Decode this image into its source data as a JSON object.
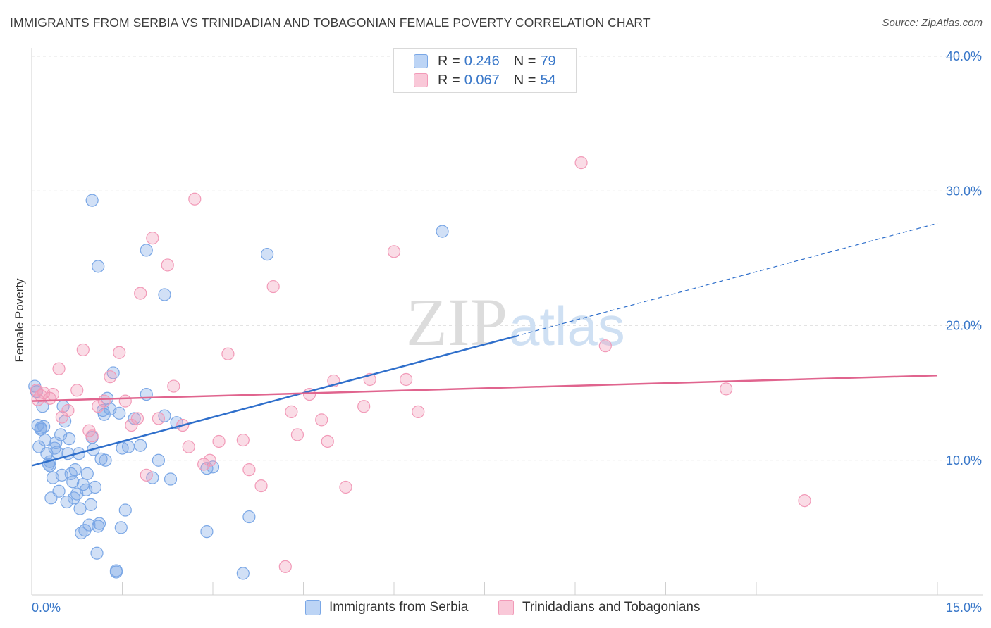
{
  "chart_data": {
    "type": "scatter",
    "title": "IMMIGRANTS FROM SERBIA VS TRINIDADIAN AND TOBAGONIAN FEMALE POVERTY CORRELATION CHART",
    "source": "Source: ZipAtlas.com",
    "xlabel": "",
    "ylabel": "Female Poverty",
    "xlim": [
      0,
      15
    ],
    "ylim": [
      0,
      40
    ],
    "x_tick_labels": [
      "0.0%",
      "15.0%"
    ],
    "y_ticks": [
      10,
      20,
      30,
      40
    ],
    "y_tick_labels": [
      "10.0%",
      "20.0%",
      "30.0%",
      "40.0%"
    ],
    "grid": true,
    "watermark": "ZIPatlas",
    "legend_stats": [
      {
        "r_label": "R = ",
        "r_value": "0.246",
        "n_label": "N = ",
        "n_value": "79"
      },
      {
        "r_label": "R = ",
        "r_value": "0.067",
        "n_label": "N = ",
        "n_value": "54"
      }
    ],
    "series": [
      {
        "name": "Immigrants from Serbia",
        "color": "#7aa7e6",
        "line_color": "#2f6fcb",
        "trend": {
          "x0": 0,
          "y0": 9.6,
          "x1": 8.0,
          "y1": 19.2,
          "dash_to_x": 15,
          "dash_to_y": 27.6
        },
        "points": [
          [
            0.05,
            15.5
          ],
          [
            0.08,
            15.1
          ],
          [
            0.1,
            12.6
          ],
          [
            0.12,
            11.0
          ],
          [
            0.15,
            12.3
          ],
          [
            0.18,
            14.0
          ],
          [
            0.2,
            12.5
          ],
          [
            0.22,
            11.5
          ],
          [
            0.25,
            10.5
          ],
          [
            0.28,
            9.7
          ],
          [
            0.3,
            9.9
          ],
          [
            0.32,
            7.2
          ],
          [
            0.35,
            8.7
          ],
          [
            0.38,
            10.9
          ],
          [
            0.4,
            11.3
          ],
          [
            0.42,
            10.6
          ],
          [
            0.45,
            7.7
          ],
          [
            0.48,
            11.9
          ],
          [
            0.5,
            8.9
          ],
          [
            0.52,
            14.0
          ],
          [
            0.55,
            12.9
          ],
          [
            0.58,
            6.9
          ],
          [
            0.6,
            10.5
          ],
          [
            0.62,
            11.6
          ],
          [
            0.65,
            9.0
          ],
          [
            0.68,
            8.4
          ],
          [
            0.7,
            7.2
          ],
          [
            0.72,
            9.3
          ],
          [
            0.75,
            7.5
          ],
          [
            0.78,
            10.5
          ],
          [
            0.8,
            6.4
          ],
          [
            0.82,
            4.6
          ],
          [
            0.85,
            8.2
          ],
          [
            0.88,
            4.8
          ],
          [
            0.9,
            7.8
          ],
          [
            0.92,
            9.0
          ],
          [
            0.95,
            5.2
          ],
          [
            0.98,
            6.7
          ],
          [
            1.0,
            11.7
          ],
          [
            1.02,
            10.8
          ],
          [
            1.05,
            8.0
          ],
          [
            1.08,
            3.1
          ],
          [
            1.1,
            5.1
          ],
          [
            1.12,
            5.3
          ],
          [
            1.15,
            10.1
          ],
          [
            1.18,
            13.7
          ],
          [
            1.2,
            13.4
          ],
          [
            1.22,
            10.0
          ],
          [
            1.25,
            14.6
          ],
          [
            1.3,
            13.8
          ],
          [
            1.35,
            16.5
          ],
          [
            1.4,
            1.8
          ],
          [
            1.45,
            13.5
          ],
          [
            1.48,
            5.0
          ],
          [
            1.5,
            10.9
          ],
          [
            1.55,
            6.3
          ],
          [
            1.6,
            11.0
          ],
          [
            1.7,
            13.1
          ],
          [
            1.8,
            11.1
          ],
          [
            1.9,
            14.9
          ],
          [
            2.0,
            8.7
          ],
          [
            2.1,
            10.0
          ],
          [
            2.2,
            13.3
          ],
          [
            2.3,
            8.6
          ],
          [
            2.4,
            12.8
          ],
          [
            2.9,
            9.4
          ],
          [
            3.0,
            9.5
          ],
          [
            3.6,
            5.8
          ],
          [
            3.9,
            25.3
          ],
          [
            6.8,
            27.0
          ],
          [
            1.0,
            29.3
          ],
          [
            1.1,
            24.4
          ],
          [
            1.9,
            25.6
          ],
          [
            2.2,
            22.3
          ],
          [
            1.4,
            1.7
          ],
          [
            2.9,
            4.7
          ],
          [
            3.5,
            1.6
          ],
          [
            0.15,
            12.4
          ],
          [
            0.3,
            9.6
          ]
        ]
      },
      {
        "name": "Trinidadians and Tobagonians",
        "color": "#f29ab8",
        "line_color": "#e0648e",
        "trend": {
          "x0": 0,
          "y0": 14.4,
          "x1": 15,
          "y1": 16.3
        },
        "points": [
          [
            0.08,
            15.2
          ],
          [
            0.1,
            14.5
          ],
          [
            0.15,
            14.8
          ],
          [
            0.2,
            15.0
          ],
          [
            0.3,
            14.6
          ],
          [
            0.35,
            14.9
          ],
          [
            0.45,
            16.8
          ],
          [
            0.5,
            13.2
          ],
          [
            0.6,
            13.7
          ],
          [
            0.75,
            15.2
          ],
          [
            0.85,
            18.2
          ],
          [
            0.95,
            12.2
          ],
          [
            1.0,
            11.8
          ],
          [
            1.1,
            14.0
          ],
          [
            1.2,
            14.4
          ],
          [
            1.3,
            16.2
          ],
          [
            1.45,
            18.0
          ],
          [
            1.55,
            14.4
          ],
          [
            1.65,
            12.6
          ],
          [
            1.75,
            13.1
          ],
          [
            1.9,
            8.9
          ],
          [
            2.0,
            26.5
          ],
          [
            2.1,
            13.1
          ],
          [
            2.25,
            24.5
          ],
          [
            2.35,
            15.5
          ],
          [
            2.5,
            12.6
          ],
          [
            2.6,
            11.0
          ],
          [
            2.7,
            29.4
          ],
          [
            2.85,
            9.7
          ],
          [
            2.95,
            10.0
          ],
          [
            3.1,
            11.4
          ],
          [
            3.25,
            17.9
          ],
          [
            3.5,
            11.5
          ],
          [
            3.6,
            9.3
          ],
          [
            3.8,
            8.1
          ],
          [
            4.0,
            22.9
          ],
          [
            4.2,
            2.1
          ],
          [
            4.3,
            13.6
          ],
          [
            4.4,
            11.9
          ],
          [
            4.6,
            14.9
          ],
          [
            4.8,
            13.0
          ],
          [
            4.9,
            11.4
          ],
          [
            5.0,
            15.9
          ],
          [
            5.2,
            8.0
          ],
          [
            5.5,
            14.0
          ],
          [
            5.6,
            16.0
          ],
          [
            6.0,
            25.5
          ],
          [
            6.2,
            16.0
          ],
          [
            6.4,
            13.6
          ],
          [
            1.8,
            22.4
          ],
          [
            9.1,
            32.1
          ],
          [
            9.5,
            18.5
          ],
          [
            11.5,
            15.3
          ],
          [
            12.8,
            7.0
          ]
        ]
      }
    ]
  }
}
